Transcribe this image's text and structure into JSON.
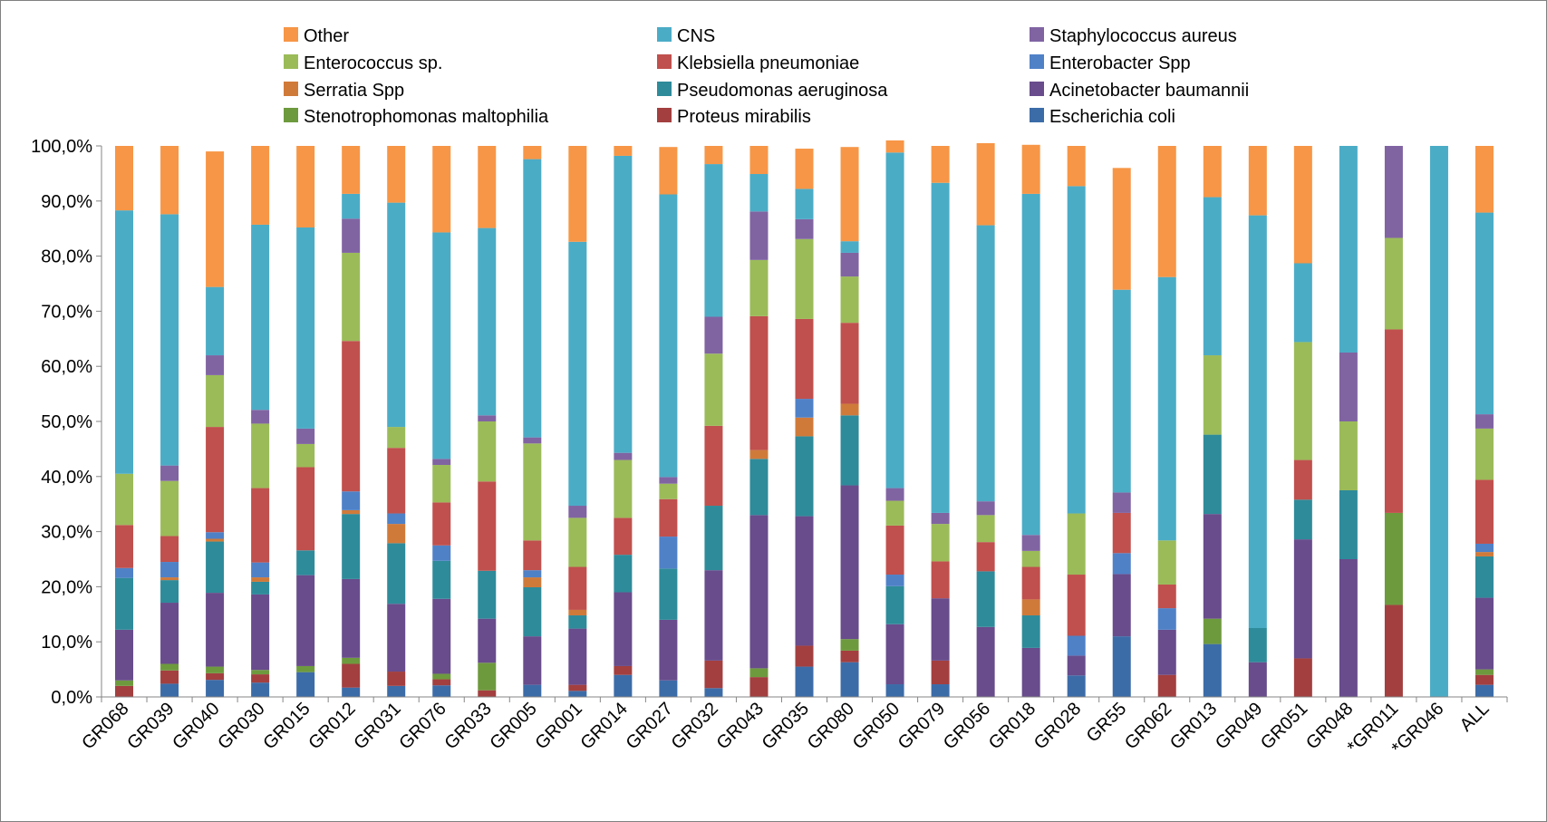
{
  "chart_data": {
    "type": "bar",
    "stacked": true,
    "percent": true,
    "title": "",
    "xlabel": "",
    "ylabel": "",
    "ylim": [
      0,
      100
    ],
    "y_ticks": [
      "0,0%",
      "10,0%",
      "20,0%",
      "30,0%",
      "40,0%",
      "50,0%",
      "60,0%",
      "70,0%",
      "80,0%",
      "90,0%",
      "100,0%"
    ],
    "grid": false,
    "legend_position": "top",
    "categories": [
      "GR068",
      "GR039",
      "GR040",
      "GR030",
      "GR015",
      "GR012",
      "GR031",
      "GR076",
      "GR033",
      "GR005",
      "GR001",
      "GR014",
      "GR027",
      "GR032",
      "GR043",
      "GR035",
      "GR080",
      "GR050",
      "GR079",
      "GR056",
      "GR018",
      "GR028",
      "GR55",
      "GR062",
      "GR013",
      "GR049",
      "GR051",
      "GR048",
      "*GR011",
      "*GR046",
      "ALL"
    ],
    "legend_order": [
      "Other",
      "CNS",
      "Staphylococcus aureus",
      "Enterococcus sp.",
      "Klebsiella pneumoniae",
      "Enterobacter Spp",
      "Serratia Spp",
      "Pseudomonas aeruginosa",
      "Acinetobacter baumannii",
      "Stenotrophomonas maltophilia",
      "Proteus mirabilis",
      "Escherichia coli"
    ],
    "series": [
      {
        "name": "Escherichia coli",
        "color": "#3C6CA8",
        "values": [
          0,
          2.4,
          3.1,
          2.6,
          4.5,
          1.7,
          2,
          2.1,
          0,
          2.2,
          1.1,
          4,
          3,
          1.6,
          0,
          5.5,
          6.3,
          2.3,
          2.3,
          0,
          0,
          3.9,
          11,
          0,
          9.6,
          0,
          0,
          0,
          0,
          0,
          2.2
        ]
      },
      {
        "name": "Proteus mirabilis",
        "color": "#A33F3F",
        "values": [
          2,
          2.4,
          1.2,
          1.5,
          0,
          4.3,
          2.6,
          1.1,
          1.2,
          0,
          1.1,
          1.6,
          0,
          5,
          3.6,
          3.8,
          2.1,
          0,
          4.3,
          0,
          0,
          0,
          0,
          4,
          0,
          0,
          7,
          0,
          16.7,
          0,
          1.8
        ]
      },
      {
        "name": "Stenotrophomonas maltophilia",
        "color": "#6E9A3E",
        "values": [
          1,
          1.2,
          1.2,
          0.8,
          1.1,
          1.1,
          0,
          1,
          5,
          0,
          0,
          0,
          0,
          0,
          1.6,
          0,
          2.1,
          0,
          0,
          0,
          0,
          0,
          0,
          0,
          4.6,
          0,
          0,
          0,
          16.7,
          0,
          1
        ]
      },
      {
        "name": "Acinetobacter baumannii",
        "color": "#684C8C",
        "values": [
          9.2,
          11.1,
          13.4,
          13.7,
          16.5,
          14.3,
          12.3,
          13.6,
          8,
          8.8,
          10.2,
          13.4,
          11,
          16.4,
          27.8,
          23.5,
          27.9,
          10.9,
          11.3,
          12.7,
          8.9,
          3.6,
          11.3,
          8.2,
          19,
          6.3,
          21.6,
          25,
          0,
          0,
          13
        ]
      },
      {
        "name": "Pseudomonas aeruginosa",
        "color": "#2E8B9A",
        "values": [
          9.4,
          4.1,
          9.3,
          2.3,
          4.5,
          11.8,
          11,
          6.9,
          8.7,
          8.9,
          2.4,
          6.8,
          9.3,
          11.7,
          10.2,
          14.5,
          12.7,
          6.9,
          0,
          10.1,
          5.9,
          0,
          0,
          0,
          14.4,
          6.2,
          7.2,
          12.5,
          0,
          0,
          7.5
        ]
      },
      {
        "name": "Serratia Spp",
        "color": "#D07A3A",
        "values": [
          0,
          0.5,
          0.5,
          0.8,
          0,
          0.7,
          3.5,
          0,
          0,
          1.8,
          1,
          0,
          0,
          0,
          1.6,
          3.4,
          2.1,
          0,
          0,
          0,
          2.9,
          0,
          0,
          0,
          0,
          0,
          0,
          0,
          0,
          0,
          0.8
        ]
      },
      {
        "name": "Enterobacter Spp",
        "color": "#4F81C7",
        "values": [
          1.8,
          2.8,
          1.2,
          2.7,
          0,
          3.4,
          1.9,
          2.8,
          0,
          1.3,
          0,
          0,
          5.8,
          0,
          0,
          3.4,
          0,
          2.1,
          0,
          0,
          0,
          3.6,
          3.8,
          3.9,
          0,
          0,
          0,
          0,
          0,
          0,
          1.5
        ]
      },
      {
        "name": "Klebsiella pneumoniae",
        "color": "#C0504D",
        "values": [
          7.8,
          4.7,
          19.1,
          13.5,
          15.1,
          27.3,
          11.9,
          7.8,
          16.2,
          5.4,
          7.8,
          6.7,
          6.8,
          14.5,
          24.3,
          14.5,
          14.7,
          8.9,
          6.7,
          5.3,
          5.9,
          11.1,
          7.3,
          4.3,
          0,
          0,
          7.2,
          0,
          33.3,
          0,
          11.6
        ]
      },
      {
        "name": "Enterococcus sp.",
        "color": "#9BBB59",
        "values": [
          9.3,
          10,
          9.4,
          11.7,
          4.2,
          16,
          3.8,
          6.8,
          10.9,
          17.6,
          8.9,
          10.5,
          2.8,
          13.1,
          10.2,
          14.5,
          8.4,
          4.5,
          6.8,
          4.9,
          2.9,
          11.1,
          0,
          8,
          14.4,
          0,
          21.4,
          12.5,
          16.6,
          0,
          9.3
        ]
      },
      {
        "name": "Staphylococcus aureus",
        "color": "#8064A2",
        "values": [
          0,
          2.8,
          3.6,
          2.5,
          2.8,
          6.2,
          0,
          1.1,
          1.1,
          1.1,
          2.2,
          1.3,
          1.2,
          6.7,
          8.8,
          3.6,
          4.3,
          2.3,
          2,
          2.5,
          2.9,
          0,
          3.7,
          0,
          0,
          0,
          0,
          12.5,
          16.7,
          0,
          2.6
        ]
      },
      {
        "name": "CNS",
        "color": "#4BACC6",
        "values": [
          47.8,
          45.6,
          12.4,
          33.6,
          36.5,
          4.5,
          40.7,
          41.1,
          34,
          50.5,
          47.9,
          53.9,
          51.3,
          27.7,
          6.8,
          5.5,
          2.1,
          60.9,
          59.9,
          50.1,
          61.9,
          59.4,
          36.8,
          47.8,
          28.7,
          74.9,
          14.3,
          37.5,
          0,
          100,
          36.6
        ]
      },
      {
        "name": "Other",
        "color": "#F79646",
        "values": [
          11.7,
          12.4,
          24.6,
          14.3,
          14.8,
          8.7,
          10.3,
          15.7,
          14.9,
          2.4,
          17.4,
          1.8,
          8.6,
          3.3,
          5.1,
          7.3,
          17.1,
          2.2,
          6.7,
          14.9,
          8.9,
          7.3,
          22.1,
          23.8,
          9.3,
          12.6,
          21.3,
          0,
          0,
          0,
          12.1
        ]
      }
    ]
  }
}
